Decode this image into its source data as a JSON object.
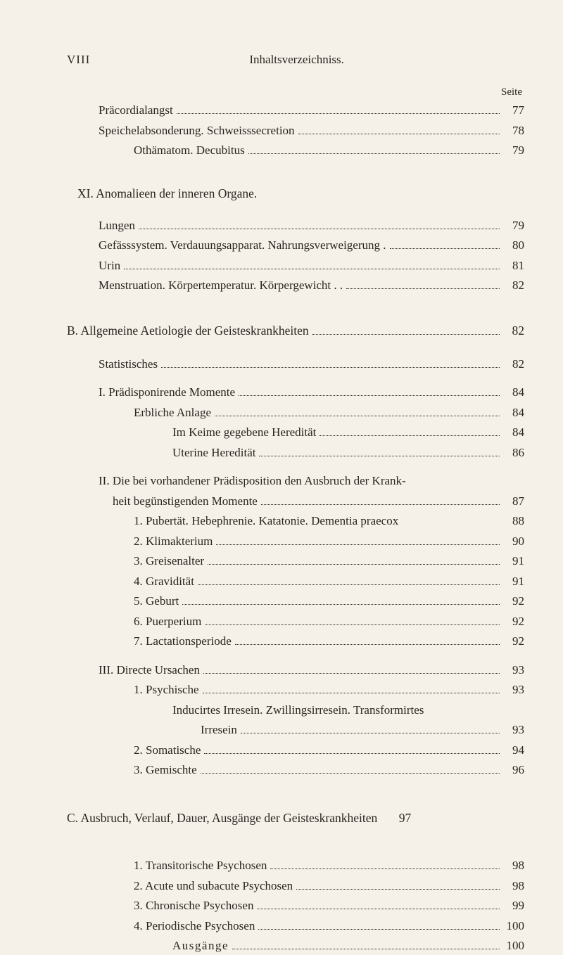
{
  "header": {
    "page_marker": "VIII",
    "title": "Inhaltsverzeichniss.",
    "seite": "Seite"
  },
  "block1": [
    {
      "text": "Präcordialangst",
      "page": "77",
      "indent": 1
    },
    {
      "text": "Speichelabsonderung. Schweisssecretion",
      "page": "78",
      "indent": 1
    },
    {
      "text": "Othämatom. Decubitus",
      "page": "79",
      "indent": 2
    }
  ],
  "section_xi": {
    "title": "XI. Anomalieen der inneren Organe.",
    "items": [
      {
        "text": "Lungen",
        "page": "79",
        "indent": 1
      },
      {
        "text": "Gefässsystem. Verdauungsapparat. Nahrungsverweigerung .",
        "page": "80",
        "indent": 1
      },
      {
        "text": "Urin",
        "page": "81",
        "indent": 1
      },
      {
        "text": "Menstruation. Körpertemperatur. Körpergewicht . .",
        "page": "82",
        "indent": 1
      }
    ]
  },
  "section_b": {
    "title": "B. Allgemeine Aetiologie der Geisteskrankheiten",
    "title_page": "82",
    "groups": [
      {
        "items": [
          {
            "text": "Statistisches",
            "page": "82",
            "indent": 1
          }
        ]
      },
      {
        "items": [
          {
            "text": "I. Prädisponirende Momente",
            "page": "84",
            "indent": 1
          },
          {
            "text": "Erbliche Anlage",
            "page": "84",
            "indent": 2
          },
          {
            "text": "Im Keime gegebene Heredität",
            "page": "84",
            "indent": 3
          },
          {
            "text": "Uterine Heredität",
            "page": "86",
            "indent": 3
          }
        ]
      },
      {
        "items": [
          {
            "text": "II. Die bei vorhandener Prädisposition den Ausbruch der Krank-",
            "page": "",
            "indent": 1,
            "nodots": true
          },
          {
            "text": "heit begünstigenden Momente",
            "page": "87",
            "indent": 2,
            "leftshift": true
          },
          {
            "text": "1. Pubertät. Hebephrenie. Katatonie. Dementia praecox",
            "page": "88",
            "indent": 2,
            "nodots": true
          },
          {
            "text": "2. Klimakterium",
            "page": "90",
            "indent": 2
          },
          {
            "text": "3. Greisenalter",
            "page": "91",
            "indent": 2
          },
          {
            "text": "4. Gravidität",
            "page": "91",
            "indent": 2
          },
          {
            "text": "5. Geburt",
            "page": "92",
            "indent": 2
          },
          {
            "text": "6. Puerperium",
            "page": "92",
            "indent": 2
          },
          {
            "text": "7. Lactationsperiode",
            "page": "92",
            "indent": 2
          }
        ]
      },
      {
        "items": [
          {
            "text": "III. Directe Ursachen",
            "page": "93",
            "indent": 1
          },
          {
            "text": "1. Psychische",
            "page": "93",
            "indent": 2
          },
          {
            "text": "Inducirtes Irresein. Zwillingsirresein. Transformirtes",
            "page": "",
            "indent": 3,
            "nodots": true
          },
          {
            "text": "Irresein",
            "page": "93",
            "indent": 4
          },
          {
            "text": "2. Somatische",
            "page": "94",
            "indent": 2
          },
          {
            "text": "3. Gemischte",
            "page": "96",
            "indent": 2
          }
        ]
      }
    ]
  },
  "section_c": {
    "title": "C. Ausbruch, Verlauf, Dauer, Ausgänge der Geisteskrankheiten",
    "title_page": "97",
    "items": [
      {
        "text": "1. Transitorische Psychosen",
        "page": "98",
        "indent": 2
      },
      {
        "text": "2. Acute und subacute Psychosen",
        "page": "98",
        "indent": 2
      },
      {
        "text": "3. Chronische Psychosen",
        "page": "99",
        "indent": 2
      },
      {
        "text": "4. Periodische Psychosen",
        "page": "100",
        "indent": 2
      },
      {
        "text": "Ausgänge",
        "page": "100",
        "indent": 3,
        "spaced": true
      }
    ]
  }
}
